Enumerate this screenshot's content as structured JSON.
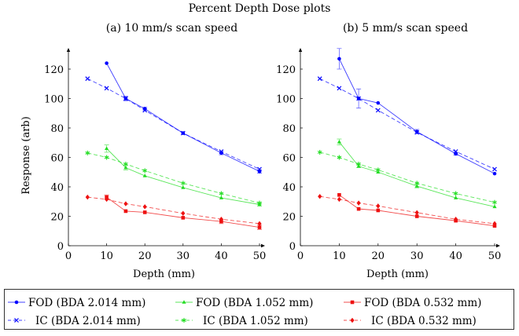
{
  "chart_data": [
    {
      "type": "line",
      "suptitle": "Percent Depth Dose plots",
      "title": "(a) 10 mm/s scan speed",
      "xlabel": "Depth (mm)",
      "ylabel": "Response (arb)",
      "xlim": [
        0,
        50
      ],
      "ylim": [
        0,
        133
      ],
      "xticks": [
        0,
        10,
        20,
        30,
        40,
        50
      ],
      "yticks": [
        0,
        20,
        40,
        60,
        80,
        100,
        120
      ],
      "grid": false,
      "series": [
        {
          "name": "FOD (BDA 2.014 mm)",
          "color": "#0000ff",
          "style": "solid",
          "marker": "dot",
          "x": [
            10,
            15,
            20,
            30,
            40,
            50
          ],
          "y": [
            124,
            100,
            93,
            76.5,
            63,
            50.5
          ],
          "err": [
            0.8,
            1.5,
            1.2,
            0.8,
            1.2,
            1.2
          ]
        },
        {
          "name": "IC (BDA 2.014 mm)",
          "color": "#0000ff",
          "style": "dashed",
          "marker": "x",
          "x": [
            5,
            10,
            15,
            20,
            30,
            40,
            50
          ],
          "y": [
            113.5,
            107,
            100,
            92,
            76.5,
            64,
            52
          ]
        },
        {
          "name": "FOD (BDA 1.052 mm)",
          "color": "#22dd22",
          "style": "solid",
          "marker": "triangle",
          "x": [
            10,
            15,
            20,
            30,
            40,
            50
          ],
          "y": [
            66,
            53,
            47.5,
            39.5,
            32.5,
            28
          ],
          "err": [
            2.5,
            1.5,
            0.5,
            0.5,
            0.5,
            1.2
          ]
        },
        {
          "name": "IC (BDA 1.052 mm)",
          "color": "#22dd22",
          "style": "dashed",
          "marker": "star",
          "x": [
            5,
            10,
            15,
            20,
            30,
            40,
            50
          ],
          "y": [
            63,
            60,
            55.5,
            51,
            42.5,
            35.5,
            29
          ]
        },
        {
          "name": "FOD (BDA 0.532 mm)",
          "color": "#ee1111",
          "style": "solid",
          "marker": "square",
          "x": [
            10,
            15,
            20,
            30,
            40,
            50
          ],
          "y": [
            33,
            23.5,
            22.7,
            19,
            16.5,
            12.5
          ],
          "err": [
            1.5,
            0.5,
            0.5,
            0.5,
            1.5,
            1.5
          ]
        },
        {
          "name": "IC (BDA 0.532 mm)",
          "color": "#ee1111",
          "style": "dashed",
          "marker": "diamond",
          "x": [
            5,
            10,
            15,
            20,
            30,
            40,
            50
          ],
          "y": [
            33,
            31.5,
            28.5,
            26.5,
            22,
            18,
            15
          ]
        }
      ]
    },
    {
      "type": "line",
      "title": "(b) 5 mm/s scan speed",
      "xlabel": "Depth (mm)",
      "xlim": [
        0,
        50
      ],
      "ylim": [
        0,
        133
      ],
      "xticks": [
        0,
        10,
        20,
        30,
        40,
        50
      ],
      "yticks": [
        0,
        20,
        40,
        60,
        80,
        100,
        120
      ],
      "grid": false,
      "series": [
        {
          "name": "FOD (BDA 2.014 mm)",
          "color": "#0000ff",
          "style": "solid",
          "marker": "dot",
          "x": [
            10,
            15,
            20,
            30,
            40,
            50
          ],
          "y": [
            127,
            100,
            97,
            77.5,
            62.5,
            49
          ],
          "err": [
            7,
            6.5,
            0.5,
            1.5,
            1,
            0.5
          ]
        },
        {
          "name": "IC (BDA 2.014 mm)",
          "color": "#0000ff",
          "style": "dashed",
          "marker": "x",
          "x": [
            5,
            10,
            15,
            20,
            30,
            40,
            50
          ],
          "y": [
            113.5,
            107,
            100,
            92,
            77,
            64,
            52
          ]
        },
        {
          "name": "FOD (BDA 1.052 mm)",
          "color": "#22dd22",
          "style": "solid",
          "marker": "triangle",
          "x": [
            10,
            15,
            20,
            30,
            40,
            50
          ],
          "y": [
            70.5,
            54,
            50,
            40.5,
            32.5,
            26.5
          ],
          "err": [
            2,
            1,
            0.8,
            1.2,
            0.8,
            0.5
          ]
        },
        {
          "name": "IC (BDA 1.052 mm)",
          "color": "#22dd22",
          "style": "dashed",
          "marker": "star",
          "x": [
            5,
            10,
            15,
            20,
            30,
            40,
            50
          ],
          "y": [
            63.5,
            60,
            55.5,
            51.5,
            42.5,
            35.5,
            29.5
          ]
        },
        {
          "name": "FOD (BDA 0.532 mm)",
          "color": "#ee1111",
          "style": "solid",
          "marker": "square",
          "x": [
            10,
            15,
            20,
            30,
            40,
            50
          ],
          "y": [
            34.5,
            25,
            24,
            20,
            17,
            13.5
          ],
          "err": [
            0.8,
            0.5,
            0.5,
            0.5,
            0.8,
            0.5
          ]
        },
        {
          "name": "IC (BDA 0.532 mm)",
          "color": "#ee1111",
          "style": "dashed",
          "marker": "diamond",
          "x": [
            5,
            10,
            15,
            20,
            30,
            40,
            50
          ],
          "y": [
            33.5,
            31.5,
            29,
            27,
            22.5,
            18,
            15
          ]
        }
      ]
    }
  ],
  "legend": {
    "placement": "bottom",
    "columns": 3,
    "order": [
      0,
      2,
      4,
      1,
      3,
      5
    ]
  }
}
